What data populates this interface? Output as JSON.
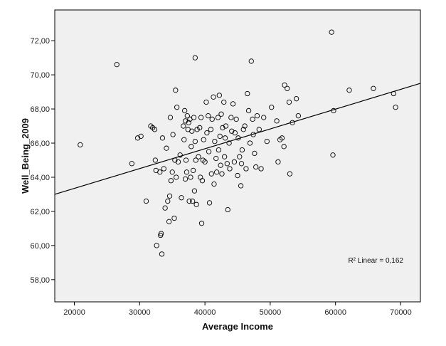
{
  "chart_data": {
    "type": "scatter",
    "xlabel": "Average Income",
    "ylabel": "Well_Being_2009",
    "xlim": [
      17000,
      73000
    ],
    "ylim": [
      56.7,
      73.8
    ],
    "xticks": [
      20000,
      30000,
      40000,
      50000,
      60000,
      70000
    ],
    "xtick_labels": [
      "20000",
      "30000",
      "40000",
      "50000",
      "60000",
      "70000"
    ],
    "yticks": [
      58,
      60,
      62,
      64,
      66,
      68,
      70,
      72
    ],
    "ytick_labels": [
      "58,00",
      "60,00",
      "62,00",
      "64,00",
      "66,00",
      "68,00",
      "70,00",
      "72,00"
    ],
    "annotation": "R² Linear = 0,162",
    "fit_line": {
      "x": [
        17000,
        73000
      ],
      "y": [
        63.0,
        69.5
      ]
    },
    "colors": {
      "plot_bg": "#f0f0f0",
      "marker": "#000000",
      "line": "#000000"
    },
    "points": [
      [
        20900,
        65.9
      ],
      [
        26500,
        70.6
      ],
      [
        28800,
        64.8
      ],
      [
        29700,
        66.3
      ],
      [
        30200,
        66.4
      ],
      [
        31000,
        62.6
      ],
      [
        31700,
        67.0
      ],
      [
        32000,
        66.9
      ],
      [
        32300,
        66.8
      ],
      [
        32400,
        65.0
      ],
      [
        32500,
        64.4
      ],
      [
        32600,
        60.0
      ],
      [
        33100,
        64.3
      ],
      [
        33200,
        60.6
      ],
      [
        33300,
        60.7
      ],
      [
        33400,
        59.5
      ],
      [
        33500,
        66.3
      ],
      [
        33700,
        64.5
      ],
      [
        33900,
        62.2
      ],
      [
        34100,
        65.7
      ],
      [
        34300,
        62.6
      ],
      [
        34500,
        61.4
      ],
      [
        34600,
        62.9
      ],
      [
        34700,
        67.5
      ],
      [
        34800,
        63.8
      ],
      [
        35000,
        64.3
      ],
      [
        35100,
        66.5
      ],
      [
        35300,
        61.6
      ],
      [
        35400,
        65.0
      ],
      [
        35500,
        69.1
      ],
      [
        35600,
        64.0
      ],
      [
        35700,
        68.1
      ],
      [
        35900,
        64.9
      ],
      [
        36200,
        65.3
      ],
      [
        36400,
        62.8
      ],
      [
        36700,
        67.0
      ],
      [
        36800,
        66.2
      ],
      [
        36900,
        67.9
      ],
      [
        37000,
        63.9
      ],
      [
        37000,
        67.3
      ],
      [
        37100,
        65.0
      ],
      [
        37200,
        64.3
      ],
      [
        37300,
        67.6
      ],
      [
        37400,
        66.8
      ],
      [
        37500,
        67.2
      ],
      [
        37600,
        62.6
      ],
      [
        37700,
        67.4
      ],
      [
        37800,
        64.0
      ],
      [
        37900,
        65.8
      ],
      [
        38000,
        66.7
      ],
      [
        38100,
        62.6
      ],
      [
        38200,
        64.4
      ],
      [
        38300,
        67.5
      ],
      [
        38400,
        63.2
      ],
      [
        38500,
        71.0
      ],
      [
        38500,
        66.1
      ],
      [
        38600,
        65.0
      ],
      [
        38700,
        62.4
      ],
      [
        38800,
        66.8
      ],
      [
        39000,
        65.2
      ],
      [
        39200,
        66.9
      ],
      [
        39300,
        64.0
      ],
      [
        39400,
        67.5
      ],
      [
        39500,
        61.3
      ],
      [
        39600,
        63.8
      ],
      [
        39700,
        65.0
      ],
      [
        39800,
        66.2
      ],
      [
        40000,
        64.9
      ],
      [
        40200,
        68.4
      ],
      [
        40300,
        66.6
      ],
      [
        40500,
        67.6
      ],
      [
        40600,
        65.5
      ],
      [
        40700,
        62.5
      ],
      [
        40900,
        66.8
      ],
      [
        41000,
        64.2
      ],
      [
        41100,
        67.4
      ],
      [
        41300,
        68.7
      ],
      [
        41400,
        63.6
      ],
      [
        41500,
        66.1
      ],
      [
        41700,
        65.1
      ],
      [
        41800,
        64.3
      ],
      [
        42000,
        67.5
      ],
      [
        42100,
        65.6
      ],
      [
        42200,
        68.8
      ],
      [
        42300,
        66.4
      ],
      [
        42400,
        64.7
      ],
      [
        42500,
        67.7
      ],
      [
        42600,
        64.2
      ],
      [
        42700,
        66.9
      ],
      [
        42900,
        68.4
      ],
      [
        43000,
        65.2
      ],
      [
        43100,
        66.3
      ],
      [
        43200,
        67.0
      ],
      [
        43400,
        64.8
      ],
      [
        43500,
        62.1
      ],
      [
        43700,
        66.0
      ],
      [
        43800,
        64.5
      ],
      [
        44000,
        67.5
      ],
      [
        44100,
        66.7
      ],
      [
        44300,
        68.3
      ],
      [
        44500,
        64.9
      ],
      [
        44600,
        66.6
      ],
      [
        44800,
        67.4
      ],
      [
        45000,
        64.1
      ],
      [
        45100,
        66.3
      ],
      [
        45300,
        65.2
      ],
      [
        45500,
        63.5
      ],
      [
        45600,
        64.8
      ],
      [
        45700,
        65.6
      ],
      [
        45900,
        66.8
      ],
      [
        46100,
        67.0
      ],
      [
        46300,
        64.5
      ],
      [
        46500,
        68.9
      ],
      [
        46700,
        67.9
      ],
      [
        46900,
        66.0
      ],
      [
        47100,
        70.8
      ],
      [
        47300,
        67.4
      ],
      [
        47400,
        66.5
      ],
      [
        47600,
        65.4
      ],
      [
        47800,
        64.6
      ],
      [
        48000,
        67.6
      ],
      [
        48300,
        66.8
      ],
      [
        48600,
        64.5
      ],
      [
        49000,
        67.5
      ],
      [
        49500,
        66.1
      ],
      [
        50200,
        68.1
      ],
      [
        51000,
        67.3
      ],
      [
        51200,
        64.9
      ],
      [
        51500,
        66.2
      ],
      [
        51800,
        66.3
      ],
      [
        52100,
        65.8
      ],
      [
        52200,
        69.4
      ],
      [
        52600,
        69.2
      ],
      [
        52900,
        68.4
      ],
      [
        53000,
        64.2
      ],
      [
        53400,
        67.2
      ],
      [
        54000,
        68.6
      ],
      [
        54300,
        67.6
      ],
      [
        59400,
        72.5
      ],
      [
        59600,
        65.3
      ],
      [
        59700,
        67.9
      ],
      [
        62100,
        69.1
      ],
      [
        65800,
        69.2
      ],
      [
        68900,
        68.9
      ],
      [
        69200,
        68.1
      ]
    ]
  }
}
